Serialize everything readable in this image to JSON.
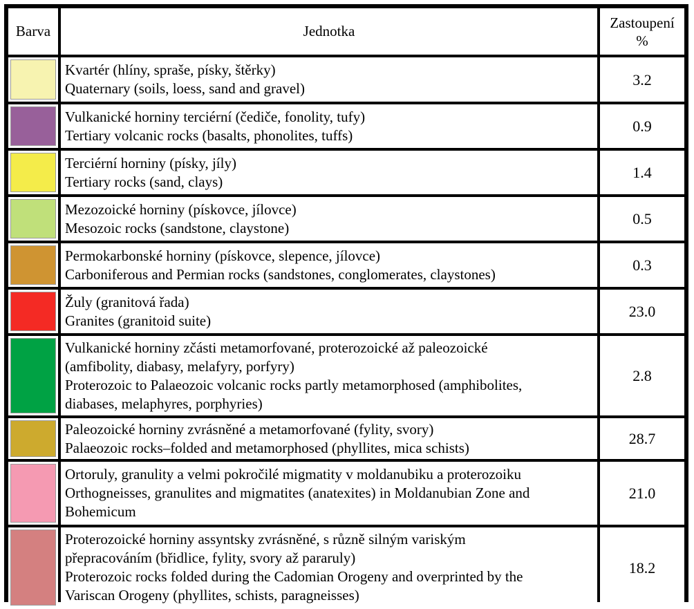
{
  "header": {
    "color_col": "Barva",
    "unit_col": "Jednotka",
    "pct_col_line1": "Zastoupení",
    "pct_col_line2": "%"
  },
  "rows": [
    {
      "color": "#f7f3b0",
      "cz": "Kvartér (hlíny, spraše, písky, štěrky)",
      "en": "Quaternary (soils, loess, sand and gravel)",
      "pct": "3.2"
    },
    {
      "color": "#98609a",
      "cz": "Vulkanické horniny terciérní (čediče, fonolity, tufy)",
      "en": "Tertiary volcanic rocks (basalts, phonolites, tuffs)",
      "pct": "0.9"
    },
    {
      "color": "#f4ec4a",
      "cz": "Terciérní horniny (písky, jíly)",
      "en": "Tertiary rocks (sand, clays)",
      "pct": "1.4"
    },
    {
      "color": "#c0e07a",
      "cz": "Mezozoické horniny (pískovce, jílovce)",
      "en": "Mesozoic rocks (sandstone, claystone)",
      "pct": "0.5"
    },
    {
      "color": "#cf9432",
      "cz": "Permokarbonské horniny (pískovce, slepence, jílovce)",
      "en": "Carboniferous and Permian rocks (sandstones, conglomerates, claystones)",
      "pct": "0.3"
    },
    {
      "color": "#f42a24",
      "cz": "Žuly (granitová řada)",
      "en": "Granites (granitoid suite)",
      "pct": "23.0"
    },
    {
      "color": "#00a244",
      "cz": "Vulkanické horniny zčásti metamorfované, proterozoické až paleozoické",
      "cz2": "(amfibolity, diabasy, melafyry, porfyry)",
      "en": "Proterozoic to Palaeozoic volcanic rocks partly metamorphosed (amphibolites,",
      "en2": "diabases, melaphyres, porphyries)",
      "pct": "2.8"
    },
    {
      "color": "#cdaa2e",
      "cz": "Paleozoické horniny zvrásněné a metamorfované (fylity, svory)",
      "en": "Palaeozoic rocks–folded and metamorphosed (phyllites, mica schists)",
      "pct": "28.7"
    },
    {
      "color": "#f59ab2",
      "cz": "Ortoruly, granulity a velmi pokročilé migmatity v moldanubiku a proterozoiku",
      "en": "Orthogneisses, granulites and migmatites (anatexites) in Moldanubian Zone and",
      "en2": "Bohemicum",
      "pct": "21.0"
    },
    {
      "color": "#d48080",
      "cz": "Proterozoické horniny assyntsky zvrásněné, s různě silným variským",
      "cz2": "přepracováním (břidlice, fylity, svory až pararuly)",
      "en": "Proterozoic rocks folded during the Cadomian Orogeny and overprinted by the",
      "en2": "Variscan Orogeny (phyllites, schists, paragneisses)",
      "pct": "18.2"
    }
  ]
}
